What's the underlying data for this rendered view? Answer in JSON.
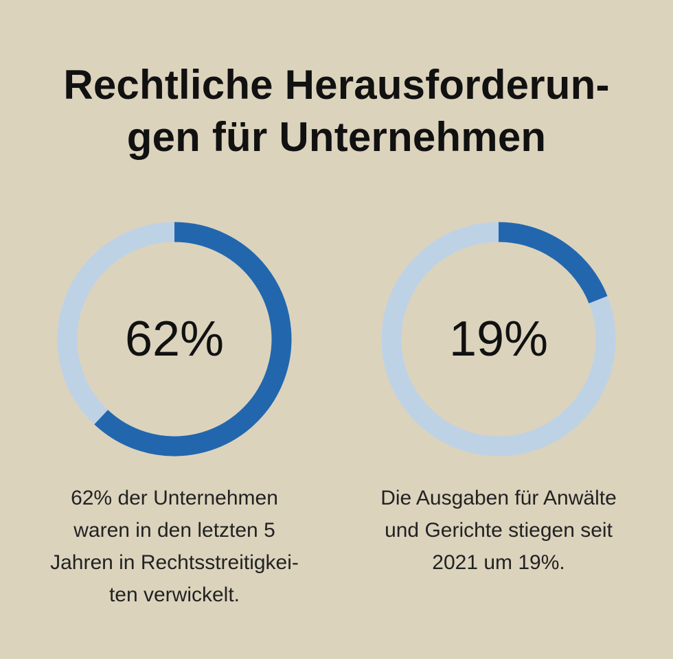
{
  "title": {
    "line1": "Rechtliche Herausforderun-",
    "line2": "gen für Unternehmen"
  },
  "colors": {
    "background": "#dcd3bd",
    "filled": "#2267ad",
    "track": "#bed2e6"
  },
  "chart_data": [
    {
      "type": "pie",
      "style": "donut",
      "value_percent": 62,
      "label": "62%",
      "caption_lines": [
        "62% der Unternehmen",
        "waren in den letzten 5",
        "Jahren in Rechtsstreitigkei-",
        "ten verwickelt."
      ]
    },
    {
      "type": "pie",
      "style": "donut",
      "value_percent": 19,
      "label": "19%",
      "caption_lines": [
        "Die Ausgaben für Anwälte",
        "und Gerichte stiegen seit",
        "2021 um 19%."
      ]
    }
  ]
}
